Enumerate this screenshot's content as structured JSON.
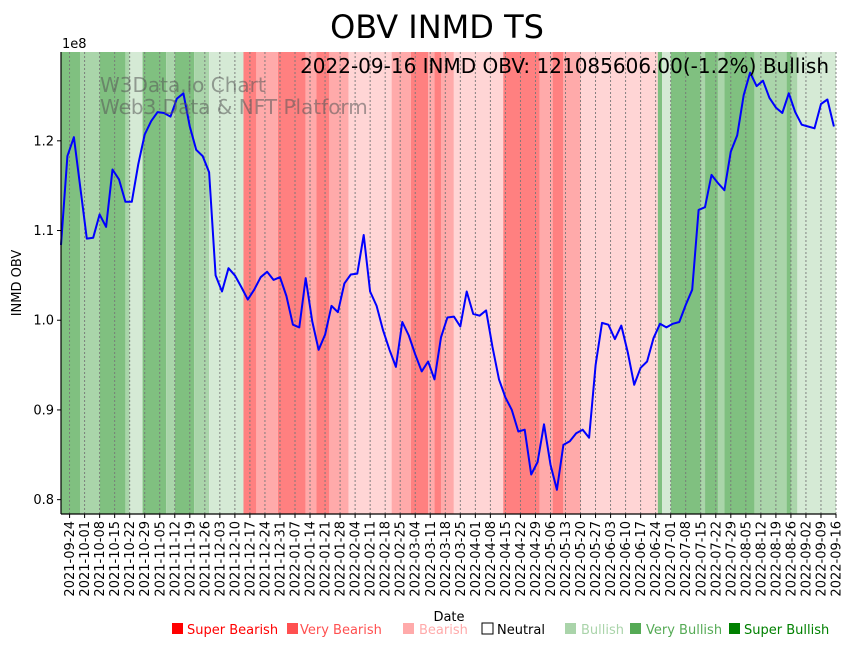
{
  "chart_data": {
    "type": "line",
    "title": "OBV INMD TS",
    "xlabel": "Date",
    "ylabel": "INMD OBV",
    "y_scale_label": "1e8",
    "xlim": [
      "2021-09-20",
      "2022-09-16"
    ],
    "ylim": [
      0.784,
      1.299
    ],
    "yticks": [
      0.8,
      0.9,
      1.0,
      1.1,
      1.2
    ],
    "ytick_labels": [
      "0.8",
      "0.9",
      "1.0",
      "1.1",
      "1.2"
    ],
    "xtick_labels": [
      "2021-09-24",
      "2021-10-01",
      "2021-10-08",
      "2021-10-15",
      "2021-10-22",
      "2021-10-29",
      "2021-11-05",
      "2021-11-12",
      "2021-11-19",
      "2021-11-26",
      "2021-12-03",
      "2021-12-10",
      "2021-12-17",
      "2021-12-24",
      "2021-12-31",
      "2022-01-07",
      "2022-01-14",
      "2022-01-21",
      "2022-01-28",
      "2022-02-04",
      "2022-02-11",
      "2022-02-18",
      "2022-02-25",
      "2022-03-04",
      "2022-03-11",
      "2022-03-18",
      "2022-03-25",
      "2022-04-01",
      "2022-04-08",
      "2022-04-15",
      "2022-04-22",
      "2022-04-29",
      "2022-05-06",
      "2022-05-13",
      "2022-05-20",
      "2022-05-27",
      "2022-06-03",
      "2022-06-10",
      "2022-06-17",
      "2022-06-24",
      "2022-07-01",
      "2022-07-08",
      "2022-07-15",
      "2022-07-22",
      "2022-07-29",
      "2022-08-05",
      "2022-08-12",
      "2022-08-19",
      "2022-08-26",
      "2022-09-02",
      "2022-09-09",
      "2022-09-16"
    ],
    "grid": "vertical dotted at x ticks",
    "series": [
      {
        "name": "INMD OBV",
        "color": "#0000ff",
        "unit": "1e8",
        "x_start": "2021-09-20",
        "x_step_days": 3,
        "values": [
          1.084,
          1.183,
          1.204,
          1.148,
          1.091,
          1.092,
          1.118,
          1.104,
          1.168,
          1.157,
          1.132,
          1.132,
          1.174,
          1.207,
          1.222,
          1.232,
          1.231,
          1.227,
          1.247,
          1.253,
          1.216,
          1.19,
          1.183,
          1.165,
          1.05,
          1.032,
          1.058,
          1.05,
          1.037,
          1.023,
          1.034,
          1.048,
          1.054,
          1.045,
          1.048,
          1.027,
          0.995,
          0.992,
          1.047,
          0.999,
          0.967,
          0.984,
          1.016,
          1.009,
          1.041,
          1.051,
          1.052,
          1.095,
          1.032,
          1.016,
          0.989,
          0.967,
          0.948,
          0.998,
          0.983,
          0.962,
          0.943,
          0.954,
          0.934,
          0.981,
          1.003,
          1.004,
          0.993,
          1.032,
          1.007,
          1.005,
          1.011,
          0.97,
          0.934,
          0.914,
          0.9,
          0.876,
          0.878,
          0.828,
          0.842,
          0.884,
          0.839,
          0.811,
          0.861,
          0.865,
          0.874,
          0.878,
          0.869,
          0.95,
          0.997,
          0.995,
          0.979,
          0.994,
          0.964,
          0.928,
          0.947,
          0.954,
          0.98,
          0.996,
          0.992,
          0.996,
          0.998,
          1.017,
          1.034,
          1.123,
          1.126,
          1.162,
          1.153,
          1.145,
          1.188,
          1.206,
          1.251,
          1.276,
          1.261,
          1.267,
          1.248,
          1.237,
          1.231,
          1.253,
          1.232,
          1.218,
          1.216,
          1.214,
          1.241,
          1.246,
          1.216
        ]
      }
    ],
    "bands": [
      [
        "2021-09-20",
        "2021-09-29",
        "super_bullish"
      ],
      [
        "2021-09-29",
        "2021-10-08",
        "very_bullish"
      ],
      [
        "2021-10-08",
        "2021-10-20",
        "super_bullish"
      ],
      [
        "2021-10-20",
        "2021-10-22",
        "very_bullish"
      ],
      [
        "2021-10-22",
        "2021-10-28",
        "bullish"
      ],
      [
        "2021-10-28",
        "2021-11-08",
        "super_bullish"
      ],
      [
        "2021-11-08",
        "2021-11-12",
        "very_bullish"
      ],
      [
        "2021-11-12",
        "2021-11-21",
        "super_bullish"
      ],
      [
        "2021-11-21",
        "2021-11-28",
        "very_bullish"
      ],
      [
        "2021-11-28",
        "2021-12-14",
        "bullish"
      ],
      [
        "2021-12-14",
        "2021-12-20",
        "super_bearish"
      ],
      [
        "2021-12-20",
        "2021-12-30",
        "very_bearish"
      ],
      [
        "2021-12-30",
        "2022-01-12",
        "super_bearish"
      ],
      [
        "2022-01-12",
        "2022-01-17",
        "very_bearish"
      ],
      [
        "2022-01-17",
        "2022-01-23",
        "super_bearish"
      ],
      [
        "2022-01-23",
        "2022-02-01",
        "very_bearish"
      ],
      [
        "2022-02-01",
        "2022-02-21",
        "bearish"
      ],
      [
        "2022-02-21",
        "2022-03-02",
        "very_bearish"
      ],
      [
        "2022-03-02",
        "2022-03-10",
        "super_bearish"
      ],
      [
        "2022-03-10",
        "2022-03-13",
        "very_bearish"
      ],
      [
        "2022-03-13",
        "2022-03-16",
        "super_bearish"
      ],
      [
        "2022-03-16",
        "2022-03-22",
        "very_bearish"
      ],
      [
        "2022-03-22",
        "2022-04-14",
        "bearish"
      ],
      [
        "2022-04-14",
        "2022-05-01",
        "super_bearish"
      ],
      [
        "2022-05-01",
        "2022-05-07",
        "very_bearish"
      ],
      [
        "2022-05-07",
        "2022-05-12",
        "super_bearish"
      ],
      [
        "2022-05-12",
        "2022-05-20",
        "very_bearish"
      ],
      [
        "2022-05-20",
        "2022-06-25",
        "bearish"
      ],
      [
        "2022-06-25",
        "2022-06-27",
        "super_bullish"
      ],
      [
        "2022-06-27",
        "2022-07-01",
        "bullish"
      ],
      [
        "2022-07-01",
        "2022-07-15",
        "super_bullish"
      ],
      [
        "2022-07-15",
        "2022-07-17",
        "very_bullish"
      ],
      [
        "2022-07-17",
        "2022-07-23",
        "super_bullish"
      ],
      [
        "2022-07-23",
        "2022-07-26",
        "very_bullish"
      ],
      [
        "2022-07-26",
        "2022-08-09",
        "super_bullish"
      ],
      [
        "2022-08-09",
        "2022-08-24",
        "very_bullish"
      ],
      [
        "2022-08-24",
        "2022-08-26",
        "super_bullish"
      ],
      [
        "2022-08-26",
        "2022-08-29",
        "very_bullish"
      ],
      [
        "2022-08-29",
        "2022-09-16",
        "bullish"
      ]
    ],
    "band_colors": {
      "super_bearish": "#ff8080",
      "very_bearish": "#ffaaaa",
      "bearish": "#ffd5d5",
      "bullish": "#d5ead5",
      "very_bullish": "#aad5aa",
      "super_bullish": "#80c080"
    },
    "annotation": "2022-09-16 INMD OBV: 121085606.00(-1.2%) Bullish",
    "watermark": [
      "W3Data.io Chart",
      "Web3 Data & NFT Platform"
    ],
    "legend": {
      "placement": "bottom",
      "items": [
        {
          "label": "Super Bearish",
          "color": "#ff0000"
        },
        {
          "label": "Very Bearish",
          "color": "#ff5050"
        },
        {
          "label": "Bearish",
          "color": "#ffaaaa"
        },
        {
          "label": "Neutral",
          "color": "#ffffff"
        },
        {
          "label": "Bullish",
          "color": "#aad4aa"
        },
        {
          "label": "Very Bullish",
          "color": "#55aa55"
        },
        {
          "label": "Super Bullish",
          "color": "#008000"
        }
      ]
    }
  }
}
